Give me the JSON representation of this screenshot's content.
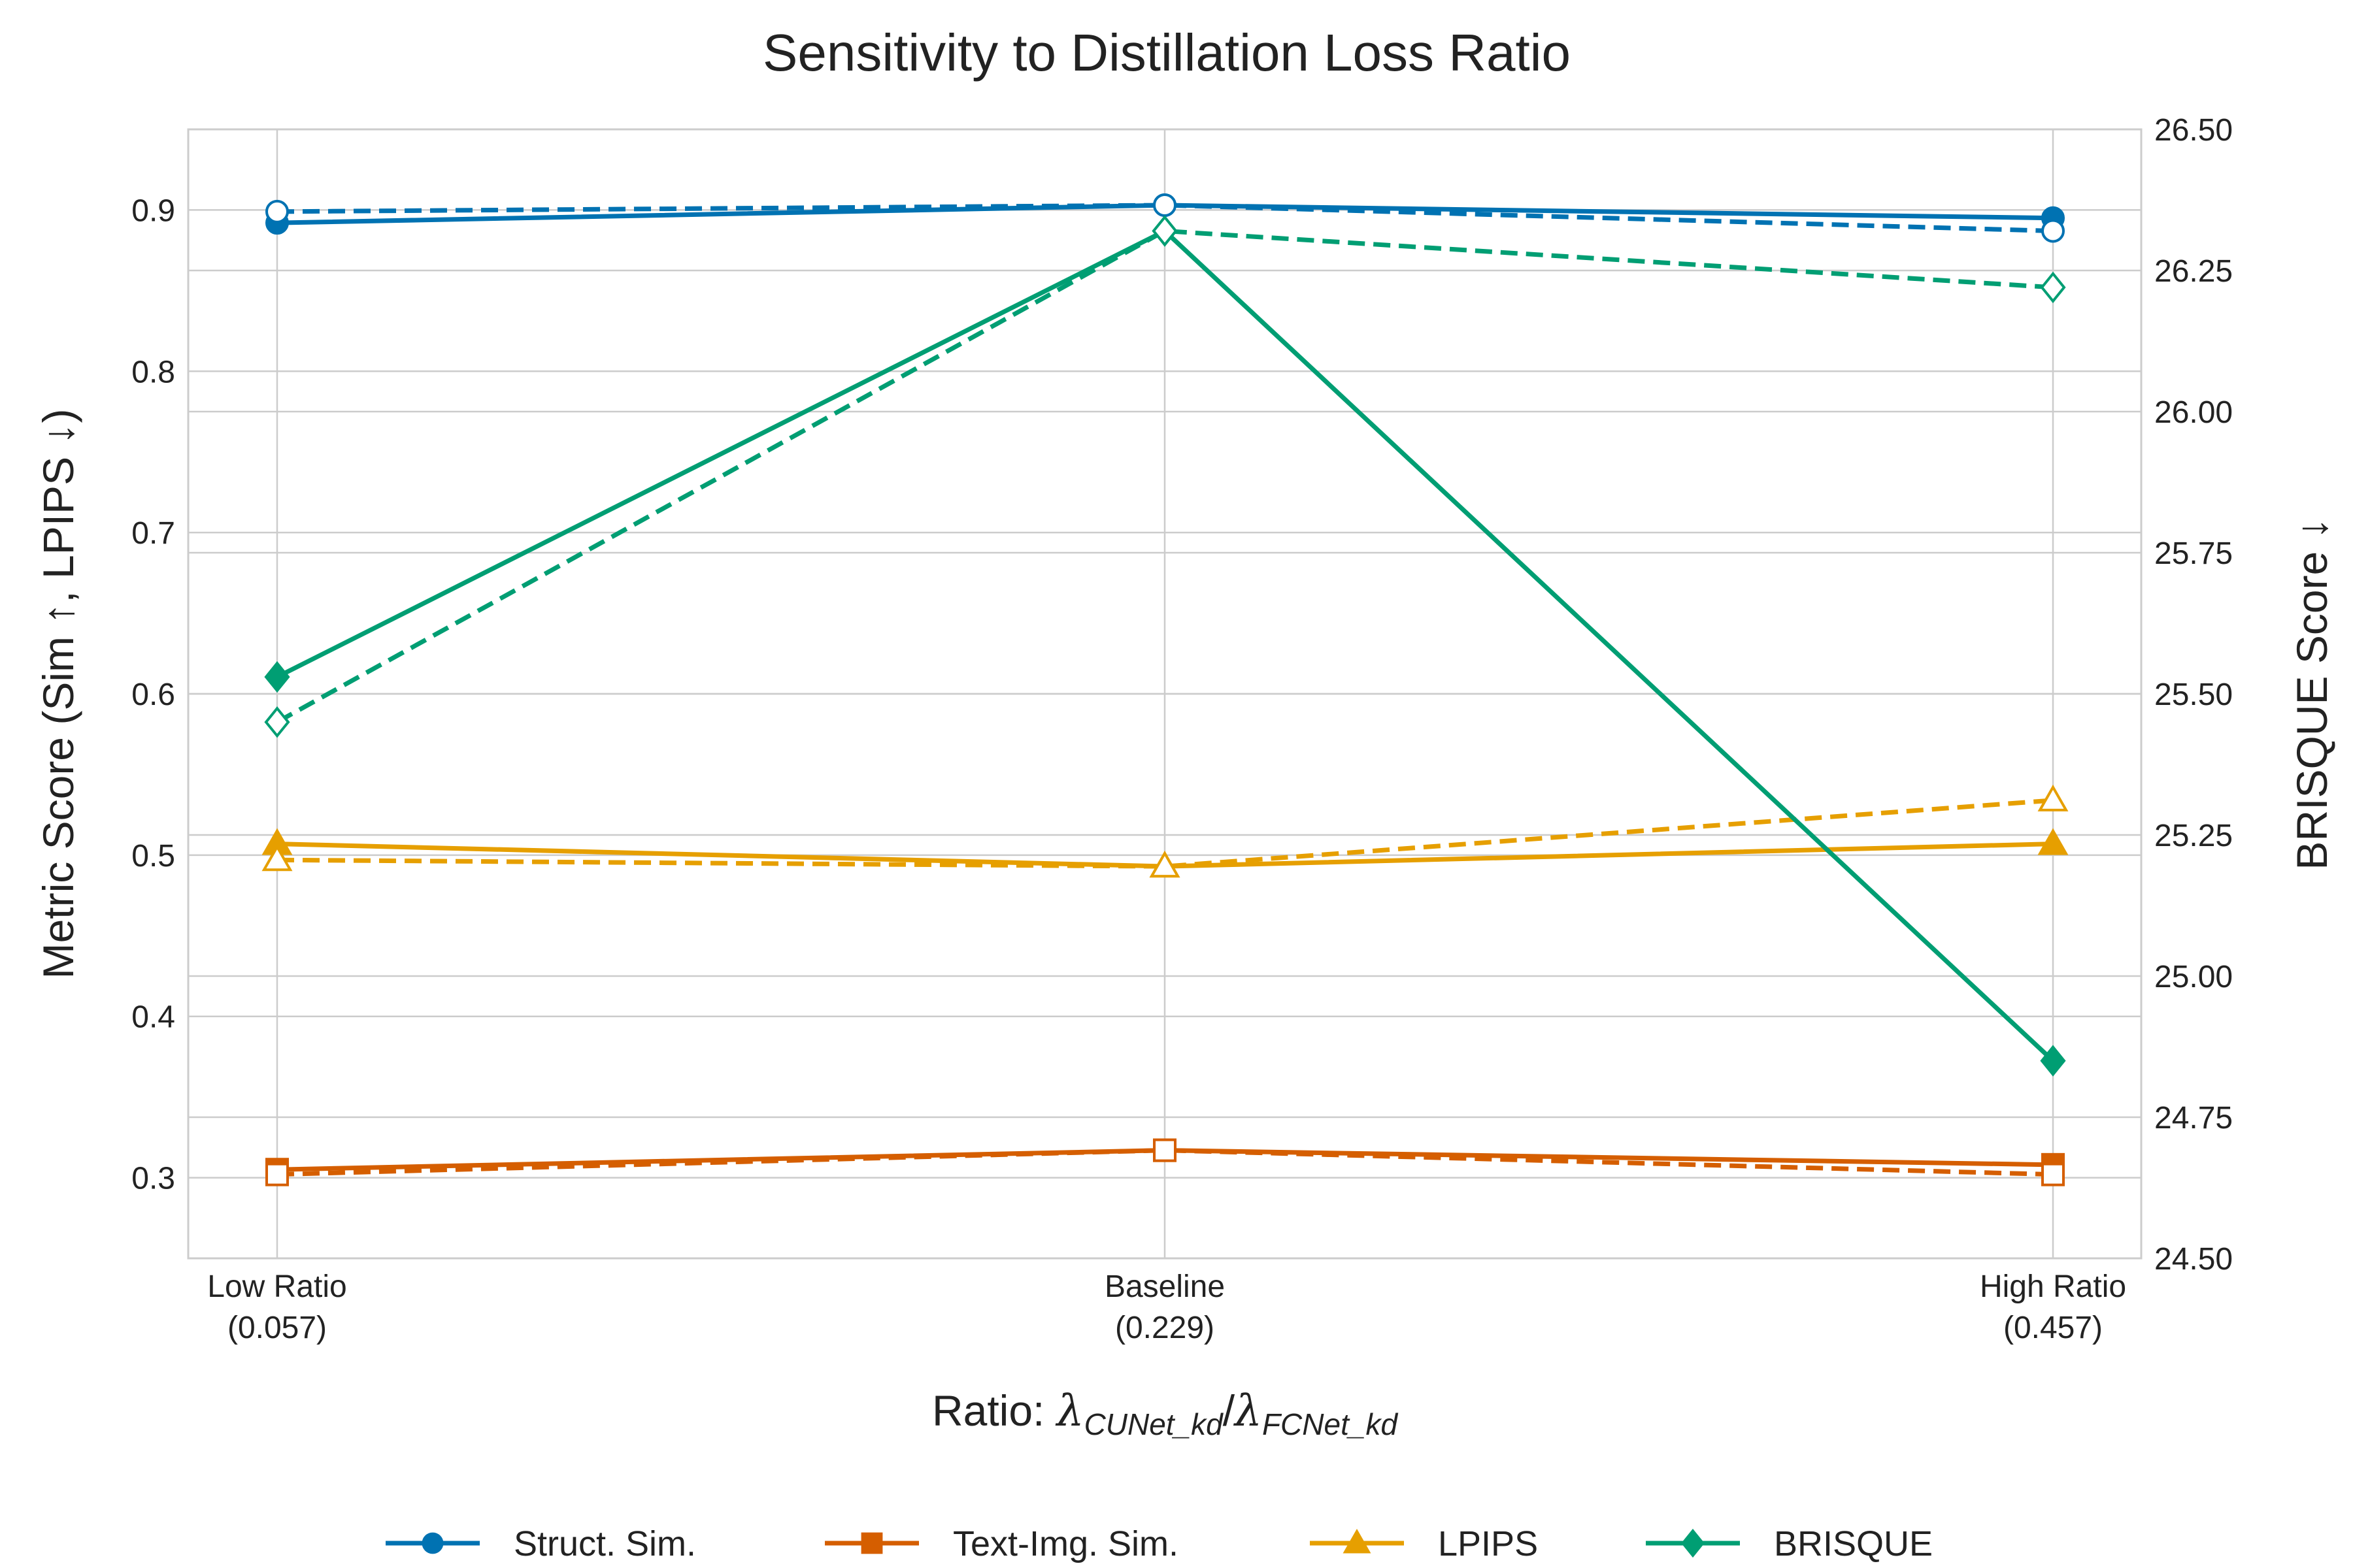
{
  "chart_data": {
    "type": "line",
    "title": "Sensitivity to Distillation Loss Ratio",
    "xlabel_prefix": "Ratio: ",
    "xlabel_num_sub": "CUNet_kd",
    "xlabel_den_sub": "FCNet_kd",
    "ylabel_left": "Metric Score (Sim ↑, LPIPS ↓)",
    "ylabel_right": "BRISQUE Score ↓",
    "categories": [
      "Low Ratio",
      "Baseline",
      "High Ratio"
    ],
    "category_values": [
      "(0.057)",
      "(0.229)",
      "(0.457)"
    ],
    "ylim_left": [
      0.25,
      0.95
    ],
    "yticks_left": [
      "0.3",
      "0.4",
      "0.5",
      "0.6",
      "0.7",
      "0.8",
      "0.9"
    ],
    "ylim_right": [
      24.5,
      26.5
    ],
    "yticks_right": [
      "24.50",
      "24.75",
      "25.00",
      "25.25",
      "25.50",
      "25.75",
      "26.00",
      "26.25",
      "26.50"
    ],
    "grid": true,
    "legend_position": "bottom",
    "line_styles": {
      "solid": "filled markers",
      "dashed": "hollow markers"
    },
    "series": [
      {
        "name": "Struct. Sim.",
        "axis": "left",
        "color": "#0072b2",
        "marker": "circle",
        "solid": [
          0.892,
          0.903,
          0.895
        ],
        "dashed": [
          0.899,
          0.903,
          0.887
        ]
      },
      {
        "name": "Text-Img. Sim.",
        "axis": "left",
        "color": "#d55e00",
        "marker": "square",
        "solid": [
          0.305,
          0.317,
          0.308
        ],
        "dashed": [
          0.302,
          0.317,
          0.302
        ]
      },
      {
        "name": "LPIPS",
        "axis": "left",
        "color": "#e69f00",
        "marker": "triangle",
        "solid": [
          0.507,
          0.493,
          0.507
        ],
        "dashed": [
          0.497,
          0.493,
          0.534
        ]
      },
      {
        "name": "BRISQUE",
        "axis": "right",
        "color": "#009e73",
        "marker": "diamond",
        "solid": [
          25.53,
          26.32,
          24.85
        ],
        "dashed": [
          25.45,
          26.32,
          26.22
        ]
      }
    ]
  }
}
